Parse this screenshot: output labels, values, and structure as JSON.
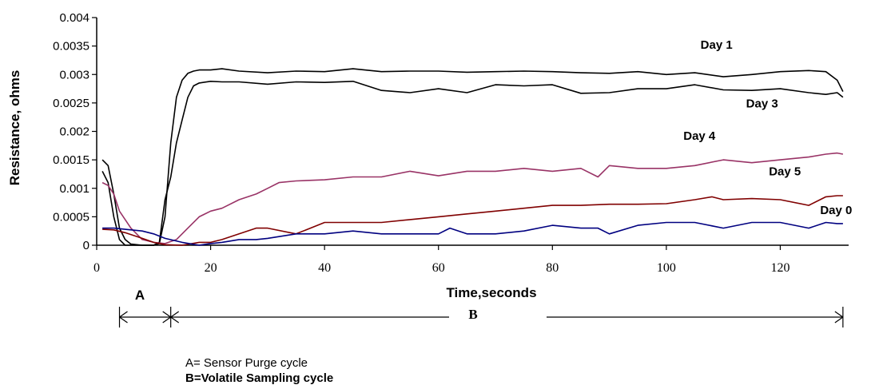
{
  "chart_data": {
    "type": "line",
    "title": "",
    "xlabel": "Time,seconds",
    "ylabel": "Resistance, ohms",
    "xlim": [
      0,
      132
    ],
    "ylim": [
      0,
      0.004
    ],
    "xticks": [
      0,
      20,
      40,
      60,
      80,
      100,
      120
    ],
    "yticks": [
      0,
      0.0005,
      0.001,
      0.0015,
      0.002,
      0.0025,
      0.003,
      0.0035,
      0.004
    ],
    "ytick_labels": [
      "0",
      "0.0005",
      "0.001",
      "0.0015",
      "0.002",
      "0.0025",
      "0.003",
      "0.0035",
      "0.004"
    ],
    "grid": false,
    "series": [
      {
        "name": "Day 1",
        "color": "#000000",
        "x": [
          1,
          2,
          3,
          4,
          5,
          6,
          8,
          10,
          11,
          12,
          13,
          14,
          15,
          16,
          17,
          18,
          20,
          22,
          25,
          30,
          35,
          40,
          45,
          50,
          55,
          60,
          65,
          70,
          75,
          80,
          85,
          90,
          95,
          100,
          105,
          110,
          115,
          120,
          125,
          128,
          130,
          131
        ],
        "y": [
          0.0015,
          0.0014,
          0.0009,
          0.0003,
          0.0001,
          2e-05,
          0.0,
          0.0,
          3e-05,
          0.0005,
          0.0018,
          0.0026,
          0.0029,
          0.00302,
          0.00306,
          0.00308,
          0.00308,
          0.0031,
          0.00306,
          0.00303,
          0.00306,
          0.00305,
          0.0031,
          0.00305,
          0.00306,
          0.00306,
          0.00304,
          0.00305,
          0.00306,
          0.00305,
          0.00303,
          0.00302,
          0.00305,
          0.003,
          0.00303,
          0.00296,
          0.003,
          0.00305,
          0.00307,
          0.00305,
          0.0029,
          0.0027
        ]
      },
      {
        "name": "Day 3",
        "color": "#000000",
        "x": [
          1,
          2,
          3,
          4,
          5,
          6,
          8,
          10,
          11,
          12,
          13,
          14,
          15,
          16,
          17,
          18,
          20,
          22,
          25,
          30,
          35,
          40,
          45,
          50,
          55,
          60,
          65,
          70,
          75,
          80,
          85,
          90,
          95,
          100,
          105,
          110,
          115,
          120,
          125,
          128,
          130,
          131
        ],
        "y": [
          0.0013,
          0.0011,
          0.0005,
          0.0001,
          0.0,
          0.0,
          0.0,
          0.0,
          5e-05,
          0.0008,
          0.0012,
          0.0018,
          0.0022,
          0.0026,
          0.0028,
          0.00285,
          0.00288,
          0.00287,
          0.00287,
          0.00283,
          0.00287,
          0.00286,
          0.00288,
          0.00272,
          0.00268,
          0.00275,
          0.00268,
          0.00282,
          0.0028,
          0.00282,
          0.00267,
          0.00268,
          0.00275,
          0.00275,
          0.00282,
          0.00273,
          0.00272,
          0.00275,
          0.00268,
          0.00265,
          0.00268,
          0.0026
        ]
      },
      {
        "name": "Day 4",
        "color": "#993366",
        "x": [
          1,
          2,
          3,
          4,
          6,
          8,
          10,
          12,
          14,
          16,
          18,
          20,
          22,
          25,
          28,
          30,
          32,
          35,
          40,
          45,
          50,
          55,
          60,
          65,
          70,
          75,
          80,
          85,
          88,
          90,
          95,
          100,
          105,
          110,
          115,
          120,
          125,
          128,
          130,
          131
        ],
        "y": [
          0.0011,
          0.00105,
          0.0009,
          0.0006,
          0.0003,
          0.0001,
          5e-05,
          3e-05,
          0.0001,
          0.0003,
          0.0005,
          0.0006,
          0.00065,
          0.0008,
          0.0009,
          0.001,
          0.0011,
          0.00113,
          0.00115,
          0.0012,
          0.0012,
          0.0013,
          0.00122,
          0.0013,
          0.0013,
          0.00135,
          0.0013,
          0.00135,
          0.0012,
          0.0014,
          0.00135,
          0.00135,
          0.0014,
          0.0015,
          0.00145,
          0.0015,
          0.00155,
          0.0016,
          0.00162,
          0.0016
        ]
      },
      {
        "name": "Day 5",
        "color": "#800000",
        "x": [
          1,
          3,
          5,
          8,
          10,
          12,
          15,
          18,
          20,
          22,
          25,
          28,
          30,
          35,
          40,
          45,
          50,
          55,
          60,
          65,
          70,
          75,
          80,
          85,
          90,
          95,
          100,
          105,
          108,
          110,
          115,
          120,
          125,
          128,
          130,
          131
        ],
        "y": [
          0.00028,
          0.00027,
          0.00022,
          0.00012,
          5e-05,
          1e-05,
          0.0,
          5e-05,
          5e-05,
          0.0001,
          0.0002,
          0.0003,
          0.0003,
          0.0002,
          0.0004,
          0.0004,
          0.0004,
          0.00045,
          0.0005,
          0.00055,
          0.0006,
          0.00065,
          0.0007,
          0.0007,
          0.00072,
          0.00072,
          0.00073,
          0.0008,
          0.00085,
          0.0008,
          0.00082,
          0.0008,
          0.0007,
          0.00085,
          0.00087,
          0.00087
        ]
      },
      {
        "name": "Day 0",
        "color": "#000080",
        "x": [
          1,
          3,
          5,
          8,
          10,
          12,
          15,
          18,
          20,
          22,
          25,
          28,
          30,
          35,
          40,
          45,
          50,
          55,
          60,
          62,
          65,
          70,
          75,
          80,
          85,
          88,
          90,
          95,
          100,
          105,
          110,
          115,
          120,
          125,
          128,
          130,
          131
        ],
        "y": [
          0.0003,
          0.0003,
          0.00028,
          0.00025,
          0.0002,
          0.00012,
          5e-05,
          0.0,
          3e-05,
          5e-05,
          0.0001,
          0.0001,
          0.00012,
          0.0002,
          0.0002,
          0.00025,
          0.0002,
          0.0002,
          0.0002,
          0.0003,
          0.0002,
          0.0002,
          0.00025,
          0.00035,
          0.0003,
          0.0003,
          0.0002,
          0.00035,
          0.0004,
          0.0004,
          0.0003,
          0.0004,
          0.0004,
          0.0003,
          0.0004,
          0.00038,
          0.00038
        ]
      }
    ],
    "series_labels": [
      {
        "text": "Day 1",
        "x": 106,
        "y": 0.00345
      },
      {
        "text": "Day 3",
        "x": 114,
        "y": 0.00242
      },
      {
        "text": "Day 4",
        "x": 103,
        "y": 0.00185
      },
      {
        "text": "Day 5",
        "x": 118,
        "y": 0.00123
      },
      {
        "text": "Day 0",
        "x": 127,
        "y": 0.00055
      }
    ]
  },
  "annotations": {
    "region_a_label": "A",
    "region_b_label": "B",
    "region_a_range": [
      4,
      13
    ],
    "region_b_range": [
      13,
      131
    ],
    "legend_a": "A= Sensor Purge cycle",
    "legend_b": "B=Volatile Sampling cycle"
  }
}
